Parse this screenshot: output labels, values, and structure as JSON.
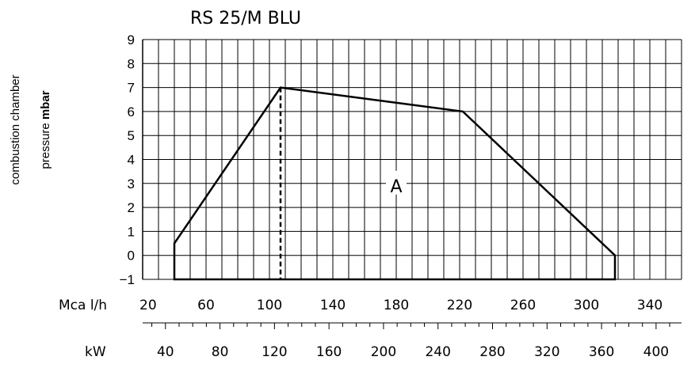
{
  "chart_data": {
    "type": "line",
    "title": "RS 25/M BLU",
    "ylabel": {
      "line1": "combustion chamber",
      "line2_prefix": "pressure ",
      "line2_unit": "mbar"
    },
    "ylim": [
      -1,
      9
    ],
    "yticks": [
      -1,
      0,
      1,
      2,
      3,
      4,
      5,
      6,
      7,
      8,
      9
    ],
    "x_mcal": {
      "unit": "Mcal/h",
      "unit_display": "Mca l/h",
      "ticks": [
        20,
        60,
        100,
        140,
        180,
        220,
        260,
        300,
        340
      ],
      "range": [
        20,
        360
      ]
    },
    "x_kw": {
      "unit": "kW",
      "unit_display": "kW",
      "ticks": [
        40,
        80,
        120,
        160,
        200,
        240,
        280,
        320,
        360,
        400
      ]
    },
    "grid": true,
    "series": [
      {
        "x": [
          40,
          40,
          107,
          222,
          318,
          318
        ],
        "y": [
          -1,
          0.5,
          7,
          6,
          0,
          -1
        ]
      }
    ],
    "reference_line": {
      "x": 107
    },
    "annotations": [
      {
        "text": "A",
        "x": 180,
        "y": 3
      }
    ]
  }
}
